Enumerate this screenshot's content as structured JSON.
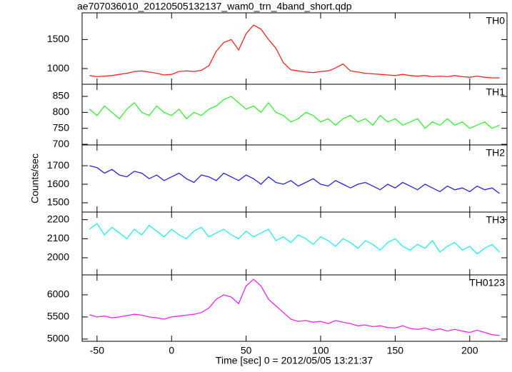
{
  "chart_data": [
    {
      "type": "line",
      "title": "ae707036010_20120505132137_wam0_trn_4band_short.qdp",
      "x": [
        -55,
        -50,
        -45,
        -40,
        -35,
        -30,
        -25,
        -20,
        -15,
        -10,
        -5,
        0,
        5,
        10,
        15,
        20,
        25,
        30,
        35,
        40,
        45,
        50,
        55,
        60,
        65,
        70,
        75,
        80,
        85,
        90,
        95,
        100,
        105,
        110,
        115,
        120,
        125,
        130,
        135,
        140,
        145,
        150,
        155,
        160,
        165,
        170,
        175,
        180,
        185,
        190,
        195,
        200,
        205,
        210,
        215,
        220
      ],
      "series": [
        {
          "name": "TH0",
          "color": "#ff2020",
          "values": [
            880,
            860,
            870,
            880,
            900,
            920,
            950,
            960,
            940,
            920,
            890,
            900,
            950,
            960,
            950,
            970,
            1050,
            1300,
            1450,
            1500,
            1320,
            1600,
            1750,
            1680,
            1500,
            1350,
            1100,
            980,
            960,
            940,
            930,
            950,
            960,
            1010,
            1080,
            960,
            940,
            920,
            910,
            900,
            890,
            880,
            900,
            880,
            870,
            880,
            860,
            870,
            860,
            880,
            860,
            850,
            870,
            850,
            840,
            840
          ]
        }
      ],
      "xlim": [
        -60,
        225
      ],
      "ylim": [
        730,
        1960
      ],
      "yticks": [
        1000,
        1500
      ]
    },
    {
      "type": "line",
      "x": [
        -55,
        -50,
        -45,
        -40,
        -35,
        -30,
        -25,
        -20,
        -15,
        -10,
        -5,
        0,
        5,
        10,
        15,
        20,
        25,
        30,
        35,
        40,
        45,
        50,
        55,
        60,
        65,
        70,
        75,
        80,
        85,
        90,
        95,
        100,
        105,
        110,
        115,
        120,
        125,
        130,
        135,
        140,
        145,
        150,
        155,
        160,
        165,
        170,
        175,
        180,
        185,
        190,
        195,
        200,
        205,
        210,
        215,
        220
      ],
      "series": [
        {
          "name": "TH1",
          "color": "#33ee33",
          "values": [
            810,
            790,
            820,
            800,
            780,
            810,
            830,
            800,
            790,
            820,
            800,
            790,
            810,
            780,
            800,
            790,
            810,
            820,
            840,
            850,
            830,
            810,
            820,
            800,
            830,
            800,
            790,
            770,
            780,
            800,
            790,
            770,
            780,
            760,
            780,
            790,
            770,
            780,
            760,
            790,
            770,
            780,
            760,
            770,
            780,
            750,
            770,
            760,
            780,
            760,
            770,
            750,
            760,
            770,
            750,
            760
          ]
        }
      ],
      "xlim": [
        -60,
        225
      ],
      "ylim": [
        698,
        888
      ],
      "yticks": [
        700,
        750,
        800,
        850
      ]
    },
    {
      "type": "line",
      "y_label": "Counts/sec",
      "x": [
        -55,
        -50,
        -45,
        -40,
        -35,
        -30,
        -25,
        -20,
        -15,
        -10,
        -5,
        0,
        5,
        10,
        15,
        20,
        25,
        30,
        35,
        40,
        45,
        50,
        55,
        60,
        65,
        70,
        75,
        80,
        85,
        90,
        95,
        100,
        105,
        110,
        115,
        120,
        125,
        130,
        135,
        140,
        145,
        150,
        155,
        160,
        165,
        170,
        175,
        180,
        185,
        190,
        195,
        200,
        205,
        210,
        215,
        220
      ],
      "series": [
        {
          "name": "TH2",
          "color": "#2222dd",
          "values": [
            1700,
            1690,
            1660,
            1680,
            1650,
            1640,
            1670,
            1660,
            1630,
            1650,
            1620,
            1640,
            1660,
            1630,
            1610,
            1650,
            1640,
            1620,
            1660,
            1640,
            1620,
            1650,
            1630,
            1600,
            1640,
            1610,
            1600,
            1620,
            1590,
            1610,
            1630,
            1600,
            1590,
            1620,
            1600,
            1580,
            1600,
            1610,
            1590,
            1570,
            1600,
            1580,
            1610,
            1590,
            1570,
            1600,
            1580,
            1560,
            1590,
            1570,
            1580,
            1560,
            1590,
            1570,
            1580,
            1550
          ]
        }
      ],
      "xlim": [
        -60,
        225
      ],
      "ylim": [
        1450,
        1812
      ],
      "yticks": [
        1500,
        1600,
        1700
      ]
    },
    {
      "type": "line",
      "x": [
        -55,
        -50,
        -45,
        -40,
        -35,
        -30,
        -25,
        -20,
        -15,
        -10,
        -5,
        0,
        5,
        10,
        15,
        20,
        25,
        30,
        35,
        40,
        45,
        50,
        55,
        60,
        65,
        70,
        75,
        80,
        85,
        90,
        95,
        100,
        105,
        110,
        115,
        120,
        125,
        130,
        135,
        140,
        145,
        150,
        155,
        160,
        165,
        170,
        175,
        180,
        185,
        190,
        195,
        200,
        205,
        210,
        215,
        220
      ],
      "series": [
        {
          "name": "TH3",
          "color": "#22eeee",
          "values": [
            2150,
            2180,
            2120,
            2160,
            2130,
            2100,
            2150,
            2120,
            2170,
            2140,
            2110,
            2150,
            2120,
            2100,
            2140,
            2160,
            2110,
            2130,
            2150,
            2120,
            2100,
            2140,
            2110,
            2130,
            2150,
            2090,
            2110,
            2080,
            2120,
            2100,
            2070,
            2110,
            2090,
            2060,
            2100,
            2080,
            2050,
            2090,
            2070,
            2040,
            2080,
            2100,
            2060,
            2040,
            2070,
            2050,
            2090,
            2030,
            2060,
            2080,
            2040,
            2060,
            2020,
            2050,
            2070,
            2030
          ]
        }
      ],
      "xlim": [
        -60,
        225
      ],
      "ylim": [
        1910,
        2240
      ],
      "yticks": [
        2000,
        2100,
        2200
      ]
    },
    {
      "type": "line",
      "x_label": "Time [sec] 0 = 2012/05/05 13:21:37",
      "x": [
        -55,
        -50,
        -45,
        -40,
        -35,
        -30,
        -25,
        -20,
        -15,
        -10,
        -5,
        0,
        5,
        10,
        15,
        20,
        25,
        30,
        35,
        40,
        45,
        50,
        55,
        60,
        65,
        70,
        75,
        80,
        85,
        90,
        95,
        100,
        105,
        110,
        115,
        120,
        125,
        130,
        135,
        140,
        145,
        150,
        155,
        160,
        165,
        170,
        175,
        180,
        185,
        190,
        195,
        200,
        205,
        210,
        215,
        220
      ],
      "series": [
        {
          "name": "TH0123",
          "color": "#ee22ee",
          "values": [
            5550,
            5500,
            5520,
            5480,
            5500,
            5530,
            5560,
            5540,
            5500,
            5480,
            5450,
            5500,
            5520,
            5540,
            5560,
            5600,
            5700,
            5900,
            6000,
            5950,
            5800,
            6200,
            6350,
            6200,
            5900,
            5750,
            5600,
            5450,
            5400,
            5420,
            5380,
            5400,
            5350,
            5420,
            5380,
            5350,
            5300,
            5320,
            5280,
            5300,
            5260,
            5250,
            5300,
            5240,
            5220,
            5250,
            5200,
            5230,
            5180,
            5220,
            5180,
            5150,
            5200,
            5150,
            5100,
            5080
          ]
        }
      ],
      "xlim": [
        -60,
        225
      ],
      "ylim": [
        4950,
        6450
      ],
      "yticks": [
        5000,
        5500,
        6000
      ],
      "xticks": [
        -50,
        0,
        50,
        100,
        150,
        200
      ]
    }
  ]
}
